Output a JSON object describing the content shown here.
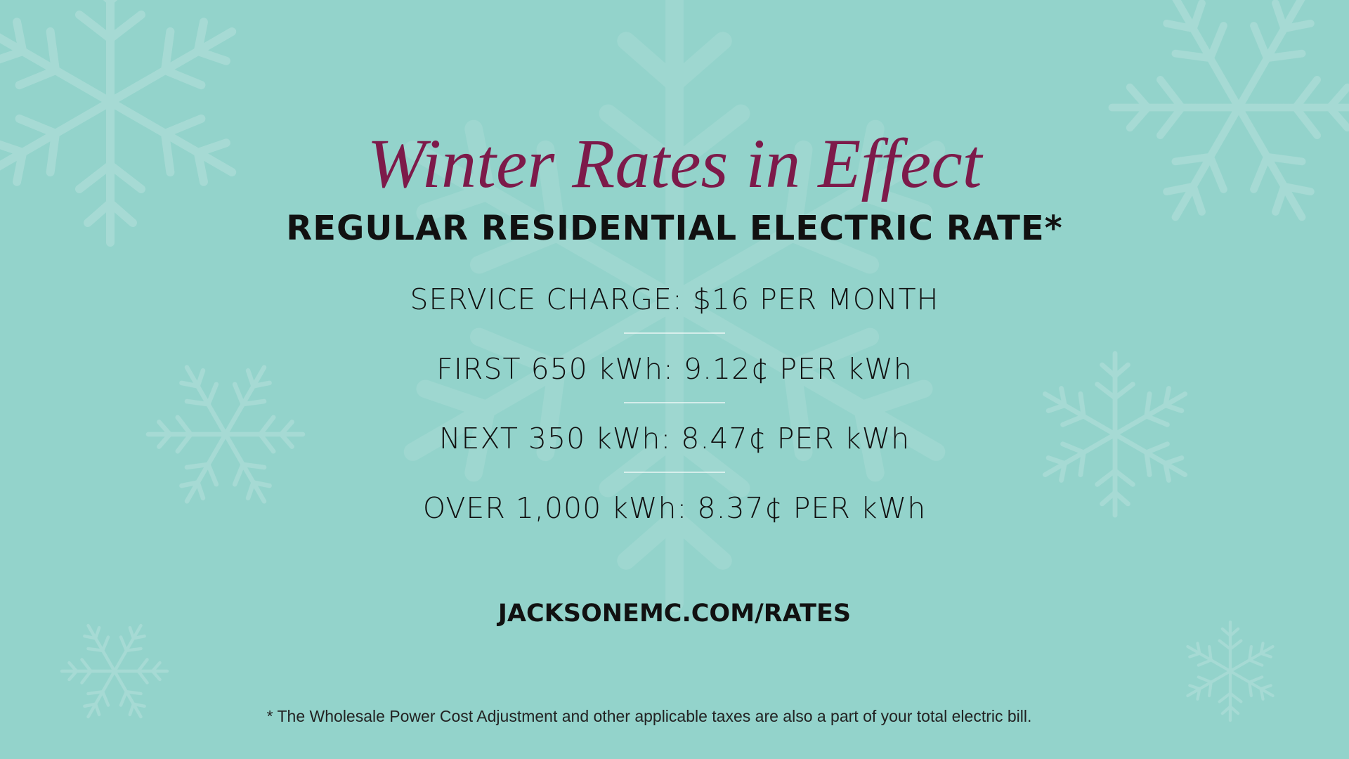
{
  "title": "Winter Rates in Effect",
  "subtitle": "REGULAR RESIDENTIAL ELECTRIC RATE*",
  "rates": [
    "SERVICE CHARGE: $16 PER MONTH",
    "FIRST 650 kWh: 9.12¢ PER kWh",
    "NEXT 350 kWh: 8.47¢ PER kWh",
    "OVER 1,000 kWh: 8.37¢ PER kWh"
  ],
  "url": "JACKSONEMC.COM/RATES",
  "footnote": "* The Wholesale Power Cost Adjustment and other applicable taxes are also a part of your total electric bill."
}
